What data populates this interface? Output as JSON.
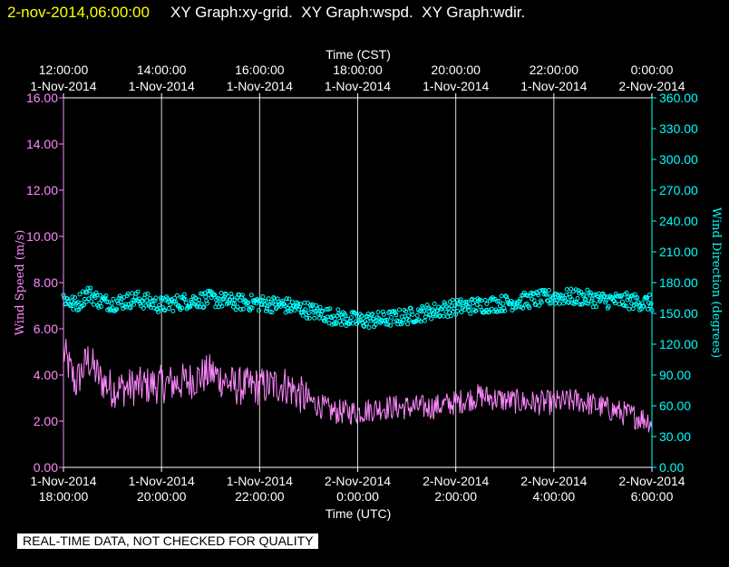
{
  "header": {
    "timestamp": "2-nov-2014,06:00:00",
    "graphs": "XY Graph:xy-grid.  XY Graph:wspd.  XY Graph:wdir."
  },
  "footer": {
    "notice": "REAL-TIME DATA, NOT CHECKED FOR QUALITY"
  },
  "chart_data": {
    "type": "line",
    "top_axis": {
      "label": "Time (CST)",
      "ticks": [
        {
          "time": "12:00:00",
          "date": "1-Nov-2014"
        },
        {
          "time": "14:00:00",
          "date": "1-Nov-2014"
        },
        {
          "time": "16:00:00",
          "date": "1-Nov-2014"
        },
        {
          "time": "18:00:00",
          "date": "1-Nov-2014"
        },
        {
          "time": "20:00:00",
          "date": "1-Nov-2014"
        },
        {
          "time": "22:00:00",
          "date": "1-Nov-2014"
        },
        {
          "time": "0:00:00",
          "date": "2-Nov-2014"
        }
      ]
    },
    "bottom_axis": {
      "label": "Time (UTC)",
      "ticks": [
        {
          "date": "1-Nov-2014",
          "time": "18:00:00"
        },
        {
          "date": "1-Nov-2014",
          "time": "20:00:00"
        },
        {
          "date": "1-Nov-2014",
          "time": "22:00:00"
        },
        {
          "date": "2-Nov-2014",
          "time": "0:00:00"
        },
        {
          "date": "2-Nov-2014",
          "time": "2:00:00"
        },
        {
          "date": "2-Nov-2014",
          "time": "4:00:00"
        },
        {
          "date": "2-Nov-2014",
          "time": "6:00:00"
        }
      ],
      "range_hours_utc": [
        18,
        30
      ]
    },
    "left_axis": {
      "label": "Wind Speed (m/s)",
      "ylim": [
        0,
        16
      ],
      "ticks": [
        "0.00",
        "2.00",
        "4.00",
        "6.00",
        "8.00",
        "10.00",
        "12.00",
        "14.00",
        "16.00"
      ]
    },
    "right_axis": {
      "label": "Wind Direction (degrees)",
      "ylim": [
        0,
        360
      ],
      "ticks": [
        "0.00",
        "30.00",
        "60.00",
        "90.00",
        "120.00",
        "150.00",
        "180.00",
        "210.00",
        "240.00",
        "270.00",
        "300.00",
        "330.00",
        "360.00"
      ]
    },
    "grid": "vertical",
    "colors": {
      "wspd": "#ff88ff",
      "wdir": "#00ffff",
      "grid": "#ffffff",
      "title_stamp": "#ffff00"
    },
    "series": [
      {
        "key": "wspd",
        "style": "line",
        "x_hours_utc": [
          18.0,
          18.25,
          18.5,
          18.75,
          19.0,
          19.5,
          20.0,
          20.5,
          21.0,
          21.5,
          22.0,
          22.5,
          23.0,
          23.5,
          24.0,
          24.5,
          25.0,
          25.5,
          26.0,
          26.5,
          27.0,
          27.5,
          28.0,
          28.5,
          29.0,
          29.5,
          30.0
        ],
        "values": [
          5.0,
          3.6,
          4.7,
          3.8,
          3.4,
          3.5,
          3.6,
          3.7,
          4.1,
          3.5,
          3.5,
          3.6,
          2.9,
          2.4,
          2.4,
          2.6,
          2.6,
          2.6,
          2.8,
          3.1,
          2.9,
          2.8,
          2.8,
          2.9,
          2.6,
          2.3,
          2.0
        ]
      },
      {
        "key": "wdir",
        "style": "markers",
        "x_hours_utc": [
          18.0,
          18.25,
          18.5,
          18.75,
          19.0,
          19.5,
          20.0,
          20.5,
          21.0,
          21.5,
          22.0,
          22.5,
          23.0,
          23.5,
          24.0,
          24.5,
          25.0,
          25.5,
          26.0,
          26.5,
          27.0,
          27.5,
          28.0,
          28.5,
          29.0,
          29.5,
          30.0
        ],
        "values": [
          165,
          158,
          170,
          162,
          160,
          164,
          158,
          162,
          164,
          161,
          160,
          158,
          153,
          147,
          143,
          144,
          147,
          152,
          156,
          158,
          160,
          163,
          166,
          166,
          163,
          162,
          160
        ]
      }
    ]
  }
}
